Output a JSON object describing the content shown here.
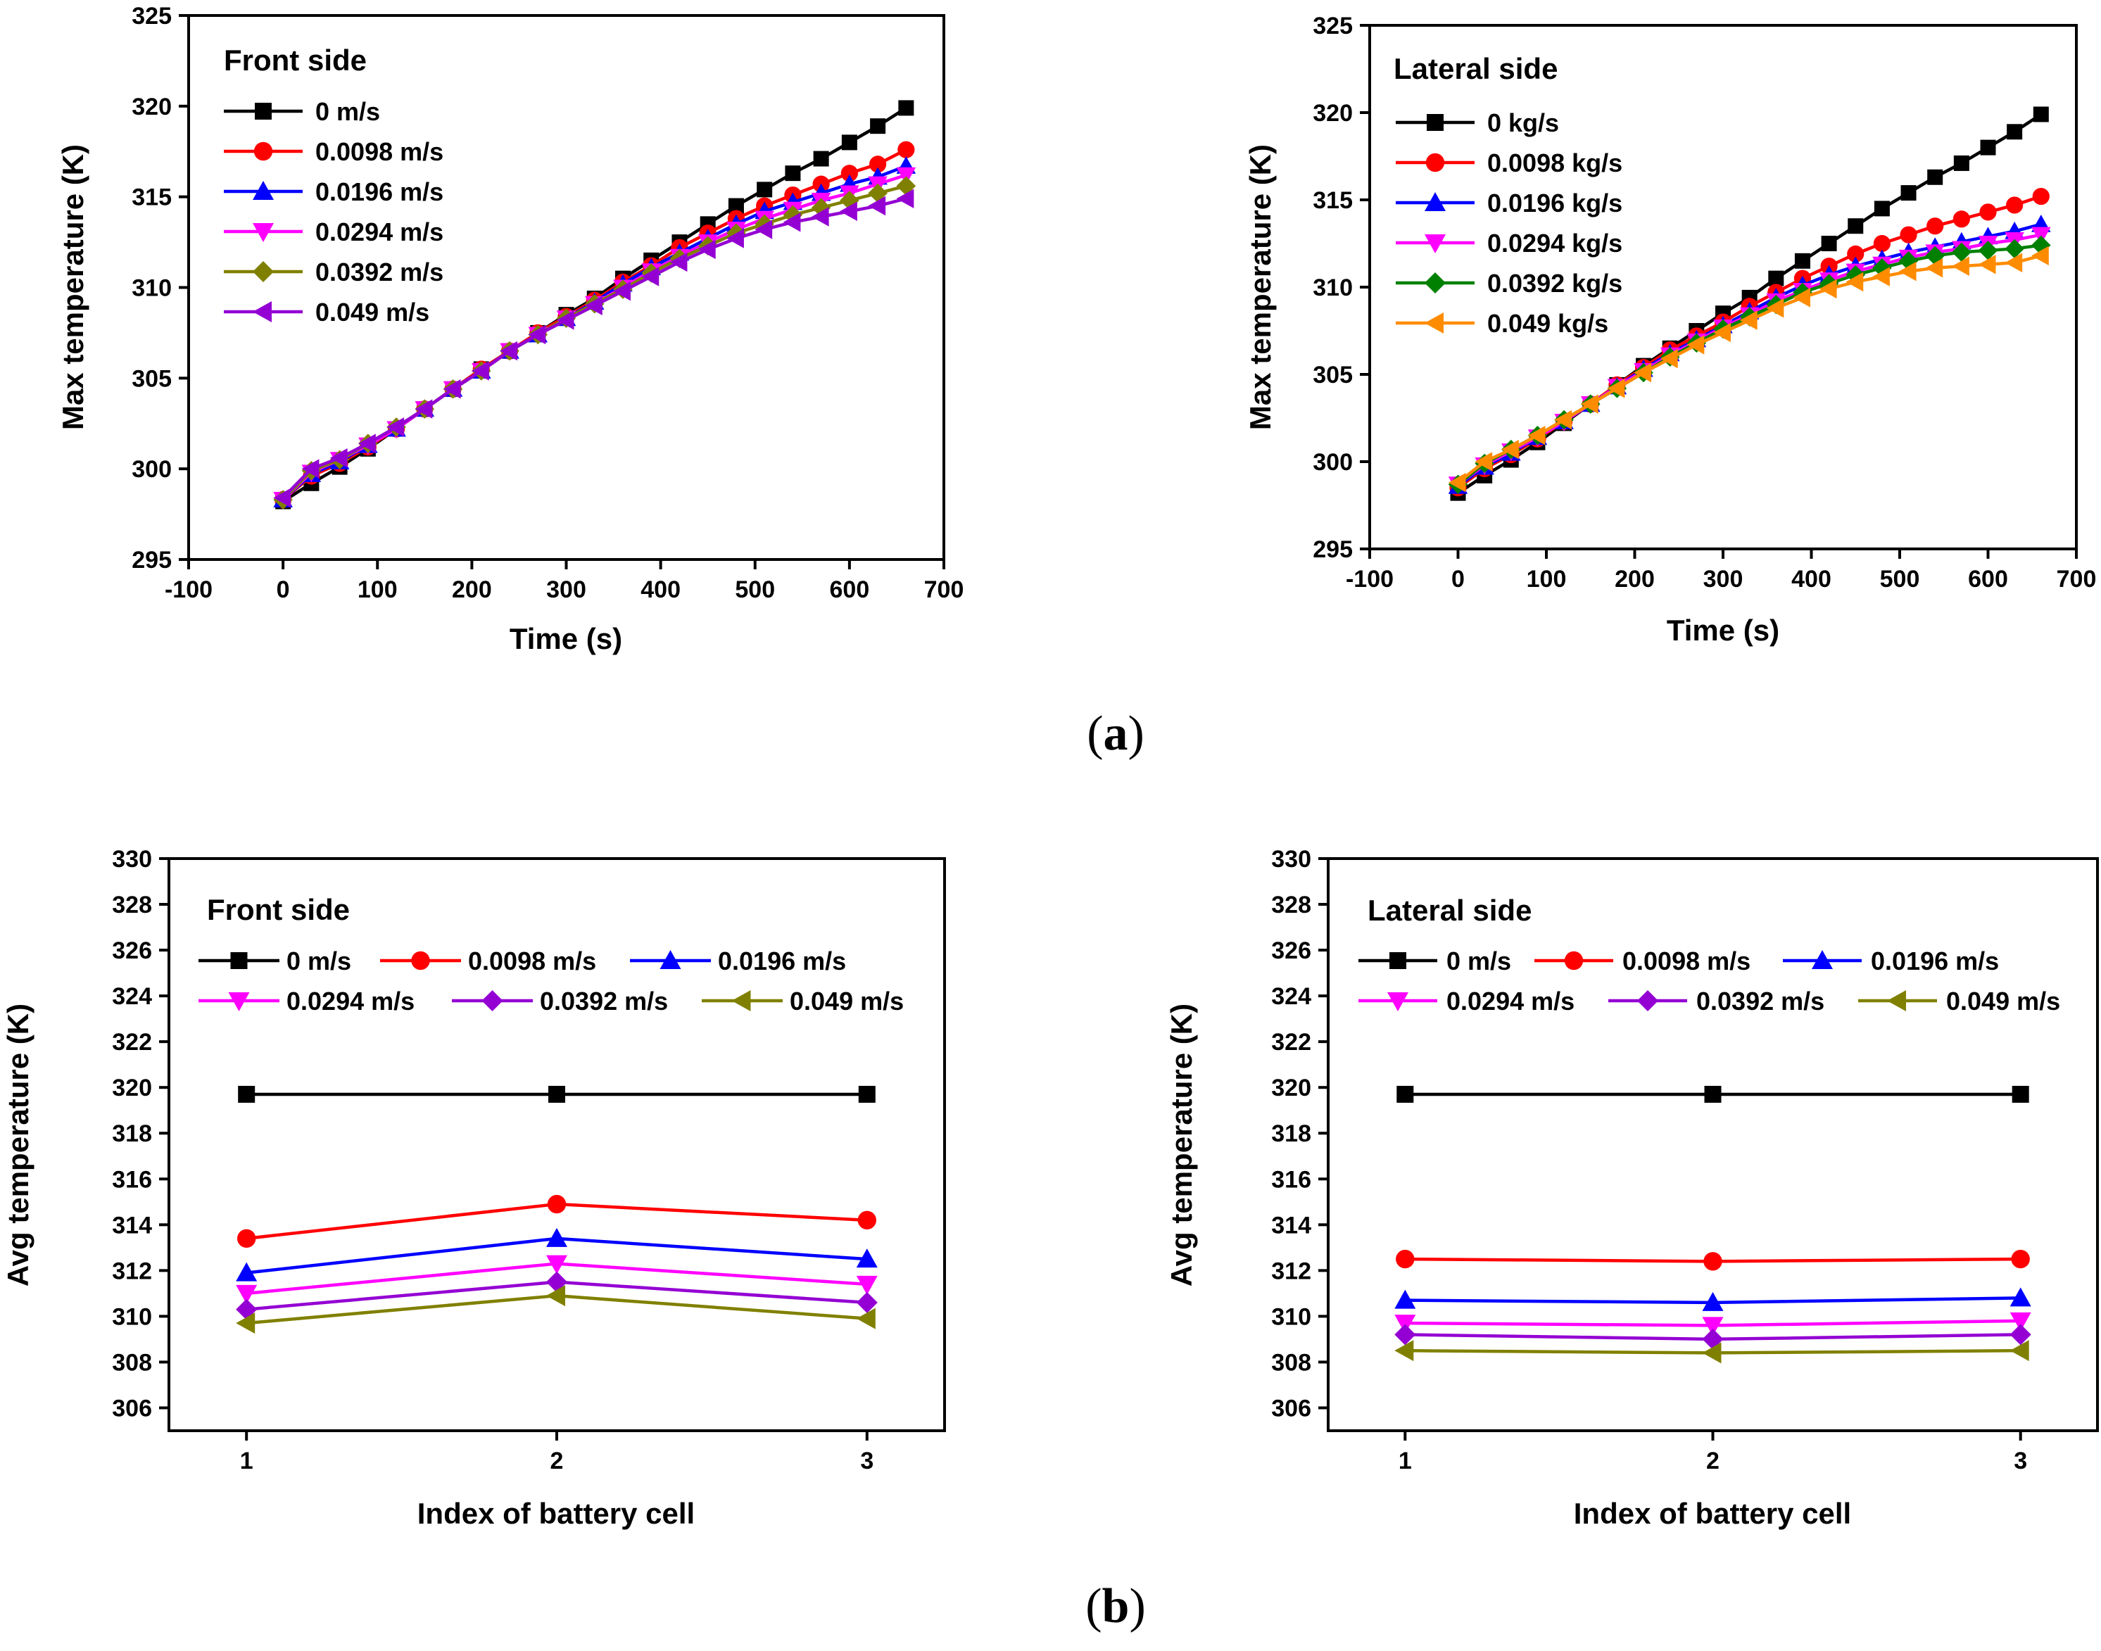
{
  "captions": {
    "a": "(a)",
    "b": "(b)",
    "a_letter": "a",
    "b_letter": "b"
  },
  "chart_data": [
    {
      "type": "line",
      "title": "Front side",
      "xlabel": "Time (s)",
      "ylabel": "Max temperature (K)",
      "xlim": [
        -100,
        700
      ],
      "ylim": [
        295,
        325
      ],
      "xticks": [
        "-100",
        "0",
        "100",
        "200",
        "300",
        "400",
        "500",
        "600",
        "700"
      ],
      "yticks": [
        "295",
        "300",
        "305",
        "310",
        "315",
        "320",
        "325"
      ],
      "legend_position": "top-left",
      "x": [
        0,
        30,
        60,
        90,
        120,
        150,
        180,
        210,
        240,
        270,
        300,
        330,
        360,
        390,
        420,
        450,
        480,
        510,
        540,
        570,
        600,
        630,
        660
      ],
      "series": [
        {
          "name": "0 m/s",
          "color": "#000000",
          "marker": "square",
          "values": [
            298.2,
            299.2,
            300.1,
            301.1,
            302.2,
            303.3,
            304.4,
            305.5,
            306.5,
            307.5,
            308.5,
            309.4,
            310.5,
            311.5,
            312.5,
            313.5,
            314.5,
            315.4,
            316.3,
            317.1,
            318.0,
            318.9,
            319.9
          ]
        },
        {
          "name": "0.0098 m/s",
          "color": "#ff0000",
          "marker": "circle",
          "values": [
            298.3,
            299.6,
            300.3,
            301.2,
            302.2,
            303.3,
            304.4,
            305.5,
            306.5,
            307.5,
            308.4,
            309.3,
            310.3,
            311.2,
            312.2,
            313.0,
            313.8,
            314.5,
            315.1,
            315.7,
            316.3,
            316.8,
            317.6
          ]
        },
        {
          "name": "0.0196 m/s",
          "color": "#0000ff",
          "marker": "triangle-up",
          "values": [
            298.3,
            299.7,
            300.4,
            301.3,
            302.2,
            303.3,
            304.4,
            305.4,
            306.5,
            307.4,
            308.3,
            309.2,
            310.2,
            311.1,
            311.9,
            312.7,
            313.5,
            314.2,
            314.7,
            315.2,
            315.7,
            316.1,
            316.7
          ]
        },
        {
          "name": "0.0294 m/s",
          "color": "#ff00ff",
          "marker": "triangle-down",
          "values": [
            298.3,
            299.8,
            300.5,
            301.3,
            302.2,
            303.3,
            304.4,
            305.4,
            306.5,
            307.4,
            308.3,
            309.1,
            310.0,
            310.9,
            311.7,
            312.5,
            313.2,
            313.8,
            314.3,
            314.8,
            315.2,
            315.7,
            316.2
          ]
        },
        {
          "name": "0.0392 m/s",
          "color": "#808000",
          "marker": "diamond",
          "values": [
            298.3,
            299.9,
            300.5,
            301.4,
            302.3,
            303.3,
            304.4,
            305.4,
            306.5,
            307.4,
            308.3,
            309.1,
            309.9,
            310.8,
            311.6,
            312.3,
            313.0,
            313.5,
            314.0,
            314.4,
            314.8,
            315.2,
            315.6
          ]
        },
        {
          "name": "0.049 m/s",
          "color": "#9400d3",
          "marker": "triangle-left",
          "values": [
            298.4,
            300.0,
            300.6,
            301.4,
            302.3,
            303.3,
            304.4,
            305.4,
            306.5,
            307.4,
            308.2,
            309.0,
            309.8,
            310.6,
            311.4,
            312.1,
            312.7,
            313.2,
            313.6,
            313.9,
            314.2,
            314.5,
            314.9
          ]
        }
      ]
    },
    {
      "type": "line",
      "title": "Lateral side",
      "xlabel": "Time (s)",
      "ylabel": "Max temperature (K)",
      "xlim": [
        -100,
        700
      ],
      "ylim": [
        295,
        325
      ],
      "xticks": [
        "-100",
        "0",
        "100",
        "200",
        "300",
        "400",
        "500",
        "600",
        "700"
      ],
      "yticks": [
        "295",
        "300",
        "305",
        "310",
        "315",
        "320",
        "325"
      ],
      "legend_position": "top-left",
      "x": [
        0,
        30,
        60,
        90,
        120,
        150,
        180,
        210,
        240,
        270,
        300,
        330,
        360,
        390,
        420,
        450,
        480,
        510,
        540,
        570,
        600,
        630,
        660
      ],
      "series": [
        {
          "name": "0 kg/s",
          "color": "#000000",
          "marker": "square",
          "values": [
            298.2,
            299.2,
            300.1,
            301.1,
            302.2,
            303.3,
            304.4,
            305.5,
            306.5,
            307.5,
            308.5,
            309.4,
            310.5,
            311.5,
            312.5,
            313.5,
            314.5,
            315.4,
            316.3,
            317.1,
            318.0,
            318.9,
            319.9
          ]
        },
        {
          "name": "0.0098 kg/s",
          "color": "#ff0000",
          "marker": "circle",
          "values": [
            298.5,
            299.6,
            300.4,
            301.3,
            302.3,
            303.3,
            304.4,
            305.4,
            306.4,
            307.2,
            308.0,
            308.9,
            309.7,
            310.5,
            311.2,
            311.9,
            312.5,
            313.0,
            313.5,
            313.9,
            314.3,
            314.7,
            315.2
          ]
        },
        {
          "name": "0.0196 kg/s",
          "color": "#0000ff",
          "marker": "triangle-up",
          "values": [
            298.6,
            299.7,
            300.5,
            301.4,
            302.3,
            303.3,
            304.3,
            305.3,
            306.2,
            307.0,
            307.8,
            308.6,
            309.4,
            310.1,
            310.7,
            311.2,
            311.6,
            312.0,
            312.3,
            312.6,
            312.9,
            313.2,
            313.6
          ]
        },
        {
          "name": "0.0294 kg/s",
          "color": "#ff00ff",
          "marker": "triangle-down",
          "values": [
            298.7,
            299.8,
            300.6,
            301.4,
            302.3,
            303.3,
            304.3,
            305.2,
            306.1,
            306.9,
            307.7,
            308.4,
            309.2,
            309.8,
            310.4,
            310.9,
            311.3,
            311.7,
            312.0,
            312.2,
            312.5,
            312.7,
            313.0
          ]
        },
        {
          "name": "0.0392 kg/s",
          "color": "#008000",
          "marker": "diamond",
          "values": [
            298.7,
            299.9,
            300.7,
            301.5,
            302.4,
            303.3,
            304.2,
            305.1,
            306.0,
            306.8,
            307.6,
            308.3,
            309.0,
            309.7,
            310.2,
            310.7,
            311.1,
            311.5,
            311.8,
            312.0,
            312.1,
            312.2,
            312.4
          ]
        },
        {
          "name": "0.049 kg/s",
          "color": "#ff8c00",
          "marker": "triangle-left",
          "values": [
            298.8,
            300.0,
            300.7,
            301.5,
            302.4,
            303.3,
            304.2,
            305.1,
            305.9,
            306.7,
            307.4,
            308.1,
            308.8,
            309.4,
            309.9,
            310.3,
            310.6,
            310.9,
            311.1,
            311.2,
            311.3,
            311.4,
            311.8
          ]
        }
      ]
    },
    {
      "type": "line",
      "title": "Front side",
      "xlabel": "Index of battery cell",
      "ylabel": "Avg temperature (K)",
      "xlim": [
        0.75,
        3.25
      ],
      "ylim": [
        305,
        330
      ],
      "xticks": [
        "1",
        "2",
        "3"
      ],
      "yticks": [
        "306",
        "308",
        "310",
        "312",
        "314",
        "316",
        "318",
        "320",
        "322",
        "324",
        "326",
        "328",
        "330"
      ],
      "legend_position": "top",
      "x": [
        1,
        2,
        3
      ],
      "series": [
        {
          "name": "0 m/s",
          "color": "#000000",
          "marker": "square",
          "values": [
            319.7,
            319.7,
            319.7
          ]
        },
        {
          "name": "0.0098 m/s",
          "color": "#ff0000",
          "marker": "circle",
          "values": [
            313.4,
            314.9,
            314.2
          ]
        },
        {
          "name": "0.0196 m/s",
          "color": "#0000ff",
          "marker": "triangle-up",
          "values": [
            311.9,
            313.4,
            312.5
          ]
        },
        {
          "name": "0.0294 m/s",
          "color": "#ff00ff",
          "marker": "triangle-down",
          "values": [
            311.0,
            312.3,
            311.4
          ]
        },
        {
          "name": "0.0392 m/s",
          "color": "#9400d3",
          "marker": "diamond",
          "values": [
            310.3,
            311.5,
            310.6
          ]
        },
        {
          "name": "0.049 m/s",
          "color": "#808000",
          "marker": "triangle-left",
          "values": [
            309.7,
            310.9,
            309.9
          ]
        }
      ]
    },
    {
      "type": "line",
      "title": "Lateral side",
      "xlabel": "Index of battery cell",
      "ylabel": "Avg temperature (K)",
      "xlim": [
        0.75,
        3.25
      ],
      "ylim": [
        305,
        330
      ],
      "xticks": [
        "1",
        "2",
        "3"
      ],
      "yticks": [
        "306",
        "308",
        "310",
        "312",
        "314",
        "316",
        "318",
        "320",
        "322",
        "324",
        "326",
        "328",
        "330"
      ],
      "legend_position": "top",
      "x": [
        1,
        2,
        3
      ],
      "series": [
        {
          "name": "0 m/s",
          "color": "#000000",
          "marker": "square",
          "values": [
            319.7,
            319.7,
            319.7
          ]
        },
        {
          "name": "0.0098 m/s",
          "color": "#ff0000",
          "marker": "circle",
          "values": [
            312.5,
            312.4,
            312.5
          ]
        },
        {
          "name": "0.0196 m/s",
          "color": "#0000ff",
          "marker": "triangle-up",
          "values": [
            310.7,
            310.6,
            310.8
          ]
        },
        {
          "name": "0.0294 m/s",
          "color": "#ff00ff",
          "marker": "triangle-down",
          "values": [
            309.7,
            309.6,
            309.8
          ]
        },
        {
          "name": "0.0392 m/s",
          "color": "#9400d3",
          "marker": "diamond",
          "values": [
            309.2,
            309.0,
            309.2
          ]
        },
        {
          "name": "0.049 m/s",
          "color": "#808000",
          "marker": "triangle-left",
          "values": [
            308.5,
            308.4,
            308.5
          ]
        }
      ]
    }
  ]
}
